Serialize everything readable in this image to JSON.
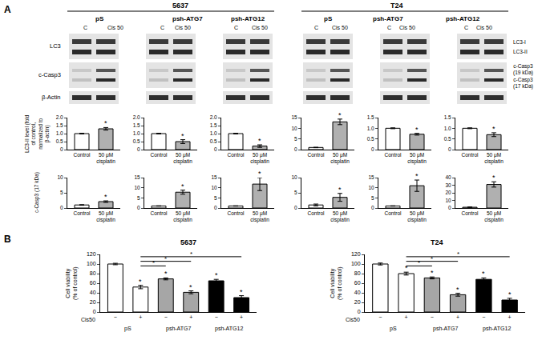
{
  "panels": [
    "A",
    "B"
  ],
  "blots": {
    "cell_lines": [
      {
        "name": "5637",
        "groups": [
          "pS",
          "psh-ATG7",
          "psh-ATG12"
        ]
      },
      {
        "name": "T24",
        "groups": [
          "pS",
          "psh-ATG7",
          "psh-ATG12"
        ]
      }
    ],
    "lanes": [
      "C",
      "Cis 50"
    ],
    "rows": [
      "LC3",
      "c-Casp3",
      "β-Actin"
    ],
    "band_labels": [
      "LC3-I",
      "LC3-II",
      "c-Casp3 (19 kDa)",
      "c-Casp3 (17 kDa)"
    ]
  },
  "chart_data": [
    {
      "type": "bar",
      "ylabel": "LC3-II level (fold of control, normalized to β-actin)",
      "categories": [
        "Control",
        "50 μM cisplatin"
      ],
      "values": [
        1.0,
        1.3
      ],
      "errors": [
        0.02,
        0.08
      ],
      "colors": [
        "#ffffff",
        "#b0b0b0"
      ],
      "ylim": [
        0,
        2
      ],
      "yticks": [
        0,
        0.5,
        {
          "value": 1,
          "label": "1.0"
        },
        1.5,
        {
          "value": 2,
          "label": "2.0"
        }
      ],
      "annotations": [
        {
          "x": 1,
          "text": "*"
        }
      ]
    },
    {
      "type": "bar",
      "categories": [
        "Control",
        "50 μM cisplatin"
      ],
      "values": [
        1.0,
        0.5
      ],
      "errors": [
        0.02,
        0.12
      ],
      "colors": [
        "#ffffff",
        "#b0b0b0"
      ],
      "ylim": [
        0,
        2
      ],
      "yticks": [
        0,
        0.5,
        {
          "value": 1,
          "label": "1.0"
        },
        1.5,
        {
          "value": 2,
          "label": "2.0"
        }
      ],
      "annotations": [
        {
          "x": 1,
          "text": "*"
        }
      ]
    },
    {
      "type": "bar",
      "categories": [
        "Control",
        "50 μM cisplatin"
      ],
      "values": [
        1.0,
        0.22
      ],
      "errors": [
        0.02,
        0.08
      ],
      "colors": [
        "#ffffff",
        "#b0b0b0"
      ],
      "ylim": [
        0,
        2
      ],
      "yticks": [
        0,
        0.5,
        {
          "value": 1,
          "label": "1.0"
        },
        1.5,
        {
          "value": 2,
          "label": "2.0"
        }
      ],
      "annotations": [
        {
          "x": 1,
          "text": "*"
        }
      ]
    },
    {
      "type": "bar",
      "categories": [
        "Control",
        "50 μM cisplatin"
      ],
      "values": [
        1.0,
        13
      ],
      "errors": [
        0.1,
        1.3
      ],
      "colors": [
        "#ffffff",
        "#b0b0b0"
      ],
      "ylim": [
        0,
        15
      ],
      "yticks": [
        0,
        5,
        10,
        15
      ],
      "annotations": [
        {
          "x": 1,
          "text": "*"
        }
      ]
    },
    {
      "type": "bar",
      "categories": [
        "Control",
        "50 μM cisplatin"
      ],
      "values": [
        1.0,
        0.72
      ],
      "errors": [
        0.02,
        0.04
      ],
      "colors": [
        "#ffffff",
        "#b0b0b0"
      ],
      "ylim": [
        0,
        1.5
      ],
      "yticks": [
        0,
        0.5,
        {
          "value": 1,
          "label": "1.0"
        },
        1.5
      ],
      "annotations": [
        {
          "x": 1,
          "text": "*"
        }
      ]
    },
    {
      "type": "bar",
      "categories": [
        "Control",
        "50 μM cisplatin"
      ],
      "values": [
        1.0,
        0.7
      ],
      "errors": [
        0.02,
        0.09
      ],
      "colors": [
        "#ffffff",
        "#b0b0b0"
      ],
      "ylim": [
        0,
        1.5
      ],
      "yticks": [
        0,
        0.5,
        {
          "value": 1,
          "label": "1.0"
        },
        1.5
      ],
      "annotations": [
        {
          "x": 1,
          "text": "*"
        }
      ]
    },
    {
      "type": "bar",
      "ylabel": "c-Casp3 (17 kDa)",
      "categories": [
        "Control",
        "50 μM cisplatin"
      ],
      "values": [
        1.0,
        2.1
      ],
      "errors": [
        0.1,
        0.25
      ],
      "colors": [
        "#ffffff",
        "#b0b0b0"
      ],
      "ylim": [
        0,
        10
      ],
      "yticks": [
        0,
        5,
        10
      ],
      "annotations": [
        {
          "x": 1,
          "text": "*"
        }
      ]
    },
    {
      "type": "bar",
      "categories": [
        "Control",
        "50 μM cisplatin"
      ],
      "values": [
        1.0,
        7.8
      ],
      "errors": [
        0.1,
        1.0
      ],
      "colors": [
        "#ffffff",
        "#b0b0b0"
      ],
      "ylim": [
        0,
        15
      ],
      "yticks": [
        0,
        5,
        10,
        15
      ],
      "annotations": [
        {
          "x": 1,
          "text": "*"
        }
      ]
    },
    {
      "type": "bar",
      "categories": [
        "Control",
        "50 μM cisplatin"
      ],
      "values": [
        1.0,
        11.8
      ],
      "errors": [
        0.1,
        3.2
      ],
      "colors": [
        "#ffffff",
        "#b0b0b0"
      ],
      "ylim": [
        0,
        15
      ],
      "yticks": [
        0,
        5,
        10,
        15
      ],
      "annotations": [
        {
          "x": 1,
          "text": "*"
        }
      ]
    },
    {
      "type": "bar",
      "categories": [
        "Control",
        "50 μM cisplatin"
      ],
      "values": [
        1.0,
        3.5
      ],
      "errors": [
        0.3,
        1.3
      ],
      "colors": [
        "#ffffff",
        "#b0b0b0"
      ],
      "ylim": [
        0,
        10
      ],
      "yticks": [
        0,
        5,
        10
      ],
      "annotations": [
        {
          "x": 1,
          "text": "*"
        }
      ]
    },
    {
      "type": "bar",
      "categories": [
        "Control",
        "50 μM cisplatin"
      ],
      "values": [
        1.0,
        11
      ],
      "errors": [
        0.1,
        2.8
      ],
      "colors": [
        "#ffffff",
        "#b0b0b0"
      ],
      "ylim": [
        0,
        15
      ],
      "yticks": [
        0,
        5,
        10,
        15
      ],
      "annotations": [
        {
          "x": 1,
          "text": "*"
        }
      ]
    },
    {
      "type": "bar",
      "categories": [
        "Control",
        "50 μM cisplatin"
      ],
      "values": [
        1.0,
        31
      ],
      "errors": [
        0.3,
        3.5
      ],
      "colors": [
        "#ffffff",
        "#b0b0b0"
      ],
      "ylim": [
        0,
        40
      ],
      "yticks": [
        0,
        10,
        20,
        30,
        40
      ],
      "annotations": [
        {
          "x": 1,
          "text": "*"
        }
      ]
    },
    {
      "type": "bar",
      "title": "5637",
      "ylabel": "Cell viability (% of control)",
      "categories": [
        "−",
        "+",
        "−",
        "+",
        "−",
        "+"
      ],
      "groups": [
        "pS",
        "psh-ATG7",
        "psh-ATG12"
      ],
      "row_label": "Cis50",
      "values": [
        100,
        52,
        69,
        41,
        65,
        30
      ],
      "errors": [
        1.5,
        3.5,
        2,
        3,
        3,
        4
      ],
      "colors": [
        "#ffffff",
        "#ffffff",
        "#a6a6a6",
        "#a6a6a6",
        "#000000",
        "#000000"
      ],
      "ylim": [
        0,
        120
      ],
      "yticks": [
        0,
        20,
        40,
        60,
        80,
        100,
        120
      ],
      "annotations": [
        {
          "x": 1,
          "text": "*"
        },
        {
          "x": 2,
          "text": "*"
        },
        {
          "x": 3,
          "text": "*"
        },
        {
          "x": 4,
          "text": "*"
        },
        {
          "x": 5,
          "text": "*"
        }
      ],
      "comparisons": [
        {
          "from": 1,
          "to": 2,
          "text": "*"
        },
        {
          "from": 1,
          "to": 3,
          "text": "*"
        },
        {
          "from": 1,
          "to": 5,
          "text": "*"
        }
      ]
    },
    {
      "type": "bar",
      "title": "T24",
      "ylabel": "Cell viability (% of control)",
      "categories": [
        "−",
        "+",
        "−",
        "+",
        "−",
        "+"
      ],
      "groups": [
        "pS",
        "psh-ATG7",
        "psh-ATG12"
      ],
      "row_label": "Cis50",
      "values": [
        100,
        80,
        71,
        36,
        68,
        25
      ],
      "errors": [
        2,
        3,
        2,
        3,
        3,
        3.5
      ],
      "colors": [
        "#ffffff",
        "#ffffff",
        "#a6a6a6",
        "#a6a6a6",
        "#000000",
        "#000000"
      ],
      "ylim": [
        0,
        120
      ],
      "yticks": [
        0,
        20,
        40,
        60,
        80,
        100,
        120
      ],
      "annotations": [
        {
          "x": 1,
          "text": "*"
        },
        {
          "x": 2,
          "text": "*"
        },
        {
          "x": 3,
          "text": "*"
        },
        {
          "x": 4,
          "text": "*"
        },
        {
          "x": 5,
          "text": "*"
        }
      ],
      "comparisons": [
        {
          "from": 1,
          "to": 2,
          "text": "*"
        },
        {
          "from": 1,
          "to": 3,
          "text": "*"
        },
        {
          "from": 1,
          "to": 5,
          "text": "*"
        }
      ]
    }
  ]
}
